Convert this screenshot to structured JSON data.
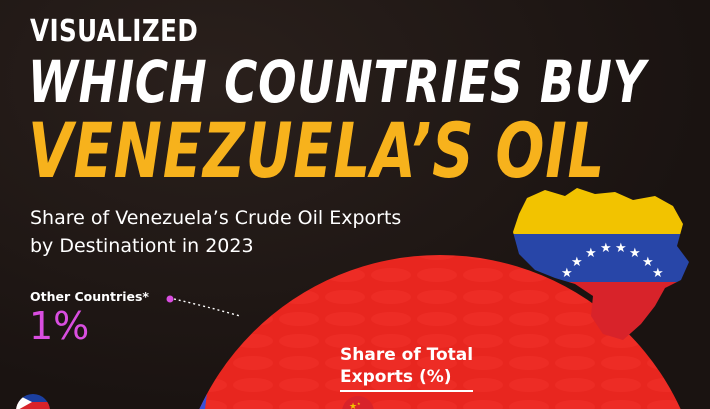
{
  "header": {
    "kicker": "VISUALIZED",
    "title_line1": "WHICH COUNTRIES BUY",
    "title_line2": "VENEZUELA’S OIL",
    "subtitle_line1": "Share of Venezuela’s Crude Oil Exports",
    "subtitle_line2": "by Destinationt in 2023"
  },
  "colors": {
    "background": "#1e1614",
    "title_accent": "#f7b21c",
    "china_red": "#e8261f",
    "other_magenta": "#d94ee0",
    "blue_segment": "#3a4fd8",
    "flag_yellow": "#f2c300",
    "flag_blue": "#2846a8",
    "flag_red": "#d8232a"
  },
  "icons": [
    "venezuela-map-flag-icon",
    "philippines-flag-icon",
    "china-flag-icon"
  ],
  "chart_data": {
    "type": "pie",
    "title": "",
    "slices": [
      {
        "label": "Other Countries*",
        "value": 1,
        "color": "#d94ee0"
      }
    ],
    "slice_label_text": "Other Countries*",
    "slice_value_text": "1%",
    "center_label_line1": "Share of Total",
    "center_label_line2": "Exports (%)"
  }
}
